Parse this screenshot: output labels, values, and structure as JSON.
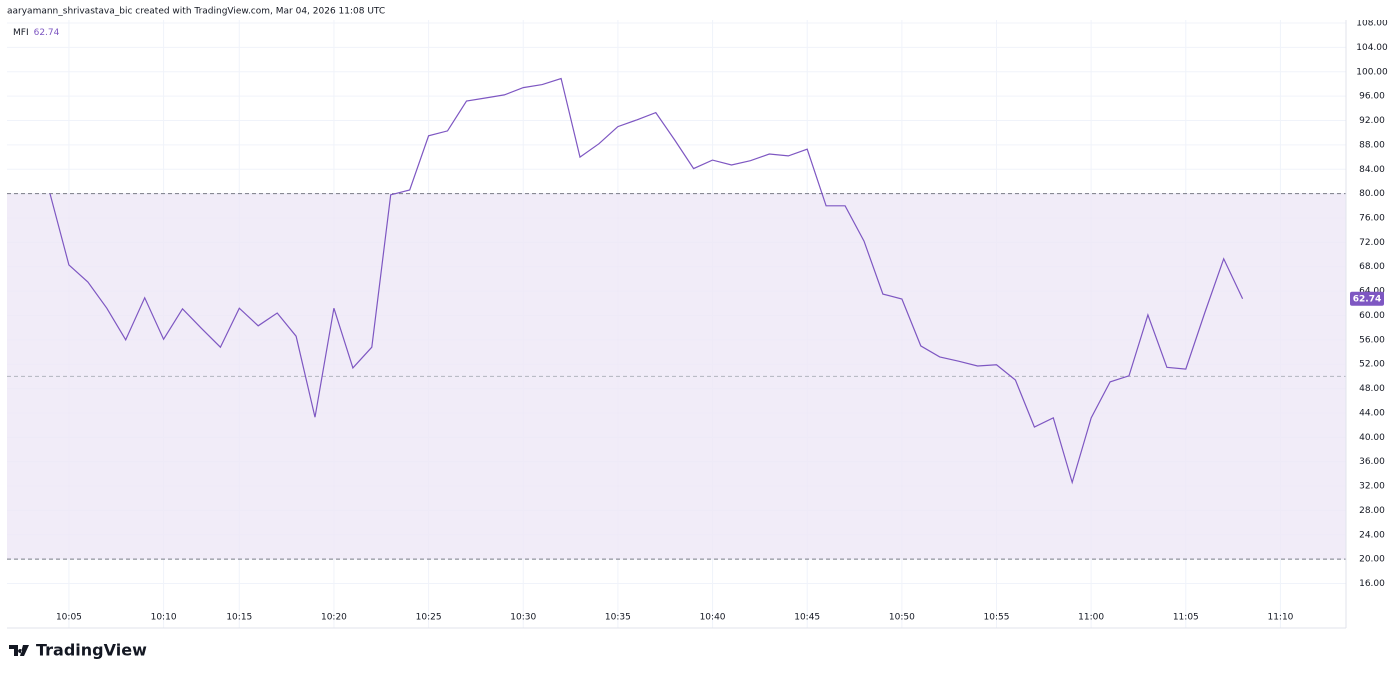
{
  "header": {
    "attribution": "aaryamann_shrivastava_bic created with TradingView.com, Mar 04, 2026 11:08 UTC"
  },
  "footer": {
    "logo_text": "TradingView"
  },
  "chart_data": {
    "type": "line",
    "categories": [
      null,
      "10:05",
      null,
      null,
      null,
      null,
      "10:10",
      null,
      null,
      null,
      "10:15",
      null,
      null,
      null,
      null,
      "10:20",
      null,
      null,
      null,
      null,
      "10:25",
      null,
      null,
      null,
      null,
      "10:30",
      null,
      null,
      null,
      null,
      "10:35",
      null,
      null,
      null,
      null,
      "10:40",
      null,
      null,
      null,
      null,
      "10:45",
      null,
      null,
      null,
      null,
      "10:50",
      null,
      null,
      null,
      null,
      "10:55",
      null,
      null,
      null,
      null,
      "11:00",
      null,
      null,
      null,
      null,
      "11:05",
      null,
      null,
      null,
      null,
      "11:10"
    ],
    "series": [
      {
        "name": "MFI",
        "color": "#7e57c2",
        "values": [
          80.0,
          68.3,
          65.5,
          61.2,
          56.0,
          62.9,
          56.1,
          61.1,
          57.9,
          54.8,
          61.2,
          58.3,
          60.4,
          56.6,
          43.3,
          61.2,
          51.4,
          54.8,
          79.8,
          80.6,
          89.5,
          90.3,
          95.2,
          95.7,
          96.2,
          97.4,
          97.9,
          98.9,
          86.0,
          88.2,
          91.0,
          92.1,
          93.3,
          88.8,
          84.1,
          85.5,
          84.7,
          85.4,
          86.5,
          86.2,
          87.3,
          78.0,
          78.0,
          72.2,
          63.5,
          62.7,
          55.0,
          53.2,
          52.5,
          51.7,
          51.9,
          49.4,
          41.7,
          43.2,
          32.6,
          43.2,
          49.1,
          50.1,
          60.1,
          51.5,
          51.2,
          60.4,
          69.3,
          62.74,
          null,
          null
        ]
      }
    ],
    "upper_band": 80,
    "middle_band": 50,
    "lower_band": 20,
    "band_fill": "#ede7f6",
    "ylim": [
      8.7,
      108.5
    ],
    "yticks": [
      {
        "value": 16,
        "label": "16.00"
      },
      {
        "value": 20,
        "label": "20.00"
      },
      {
        "value": 24,
        "label": "24.00"
      },
      {
        "value": 28,
        "label": "28.00"
      },
      {
        "value": 32,
        "label": "32.00"
      },
      {
        "value": 36,
        "label": "36.00"
      },
      {
        "value": 40,
        "label": "40.00"
      },
      {
        "value": 44,
        "label": "44.00"
      },
      {
        "value": 48,
        "label": "48.00"
      },
      {
        "value": 52,
        "label": "52.00"
      },
      {
        "value": 56,
        "label": "56.00"
      },
      {
        "value": 60,
        "label": "60.00"
      },
      {
        "value": 64,
        "label": "64.00"
      },
      {
        "value": 68,
        "label": "68.00"
      },
      {
        "value": 72,
        "label": "72.00"
      },
      {
        "value": 76,
        "label": "76.00"
      },
      {
        "value": 80,
        "label": "80.00"
      },
      {
        "value": 84,
        "label": "84.00"
      },
      {
        "value": 88,
        "label": "88.00"
      },
      {
        "value": 92,
        "label": "92.00"
      },
      {
        "value": 96,
        "label": "96.00"
      },
      {
        "value": 100,
        "label": "100.00"
      },
      {
        "value": 104,
        "label": "104.00"
      },
      {
        "value": 108,
        "label": "108.00"
      }
    ],
    "grid": true
  }
}
